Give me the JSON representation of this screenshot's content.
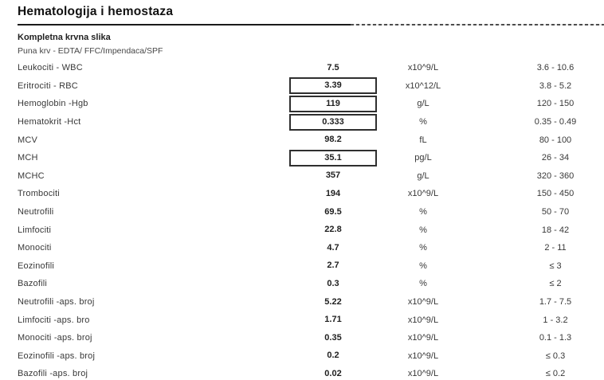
{
  "header": {
    "title": "Hematologija i hemostaza",
    "section": "Kompletna krvna slika",
    "sample": "Puna krv - EDTA/ FFC/Impendaca/SPF"
  },
  "table": {
    "rows": [
      {
        "name": "Leukociti - WBC",
        "value": "7.5",
        "unit": "x10^9/L",
        "range": "3.6 - 10.6",
        "flagged": false
      },
      {
        "name": "Eritrociti - RBC",
        "value": "3.39",
        "unit": "x10^12/L",
        "range": "3.8 - 5.2",
        "flagged": true
      },
      {
        "name": "Hemoglobin -Hgb",
        "value": "119",
        "unit": "g/L",
        "range": "120 - 150",
        "flagged": true
      },
      {
        "name": "Hematokrit -Hct",
        "value": "0.333",
        "unit": "%",
        "range": "0.35 - 0.49",
        "flagged": true
      },
      {
        "name": "MCV",
        "value": "98.2",
        "unit": "fL",
        "range": "80 - 100",
        "flagged": false
      },
      {
        "name": "MCH",
        "value": "35.1",
        "unit": "pg/L",
        "range": "26 - 34",
        "flagged": true
      },
      {
        "name": "MCHC",
        "value": "357",
        "unit": "g/L",
        "range": "320 - 360",
        "flagged": false
      },
      {
        "name": "Trombociti",
        "value": "194",
        "unit": "x10^9/L",
        "range": "150 - 450",
        "flagged": false
      },
      {
        "name": "Neutrofili",
        "value": "69.5",
        "unit": "%",
        "range": "50 - 70",
        "flagged": false
      },
      {
        "name": "Limfociti",
        "value": "22.8",
        "unit": "%",
        "range": "18 - 42",
        "flagged": false
      },
      {
        "name": "Monociti",
        "value": "4.7",
        "unit": "%",
        "range": "2 - 11",
        "flagged": false
      },
      {
        "name": "Eozinofili",
        "value": "2.7",
        "unit": "%",
        "range": "≤ 3",
        "flagged": false
      },
      {
        "name": "Bazofili",
        "value": "0.3",
        "unit": "%",
        "range": "≤ 2",
        "flagged": false
      },
      {
        "name": "Neutrofili -aps. broj",
        "value": "5.22",
        "unit": "x10^9/L",
        "range": "1.7 - 7.5",
        "flagged": false
      },
      {
        "name": "Limfociti -aps. bro",
        "value": "1.71",
        "unit": "x10^9/L",
        "range": "1 - 3.2",
        "flagged": false
      },
      {
        "name": "Monociti -aps. broj",
        "value": "0.35",
        "unit": "x10^9/L",
        "range": "0.1 - 1.3",
        "flagged": false
      },
      {
        "name": "Eozinofili -aps. broj",
        "value": "0.2",
        "unit": "x10^9/L",
        "range": "≤ 0.3",
        "flagged": false
      },
      {
        "name": "Bazofili -aps. broj",
        "value": "0.02",
        "unit": "x10^9/L",
        "range": "≤ 0.2",
        "flagged": false
      }
    ]
  },
  "colors": {
    "text": "#383838",
    "title": "#111111",
    "box_border": "#2f2f2f",
    "rule_solid": "#1a1a1a",
    "rule_dashed": "#4d4d4d"
  }
}
